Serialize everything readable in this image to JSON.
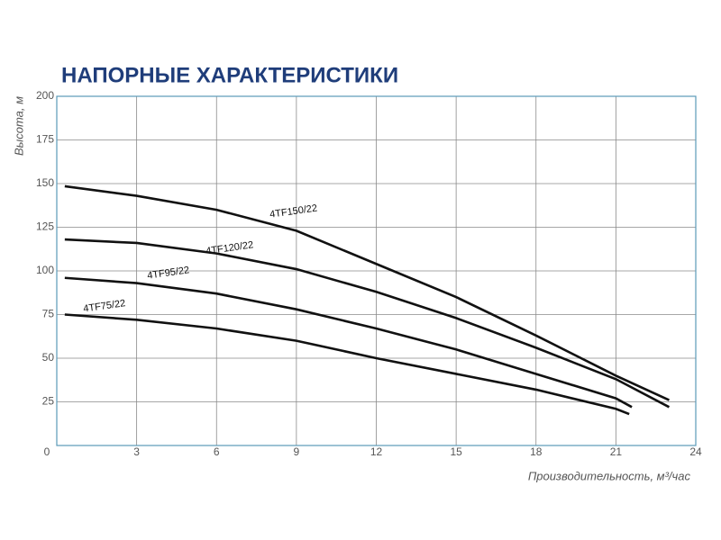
{
  "chart_data": {
    "type": "line",
    "title": "НАПОРНЫЕ ХАРАКТЕРИСТИКИ",
    "x_label": "Производительность, м³/час",
    "y_label": "Высота, м",
    "xlim": [
      0,
      24
    ],
    "xticks": [
      0,
      3,
      6,
      9,
      12,
      15,
      18,
      21,
      24
    ],
    "ylim": [
      0,
      200
    ],
    "yticks": [
      25,
      50,
      75,
      100,
      125,
      150,
      175,
      200
    ],
    "grid": true,
    "series": [
      {
        "name": "4TF150/22",
        "color": "#111111",
        "x": [
          0.3,
          3,
          6,
          9,
          12,
          15,
          18,
          21,
          23
        ],
        "values": [
          148.5,
          143,
          135,
          123,
          104,
          85,
          63,
          40,
          26
        ]
      },
      {
        "name": "4TF120/22",
        "color": "#111111",
        "x": [
          0.3,
          3,
          6,
          9,
          12,
          15,
          18,
          21,
          23
        ],
        "values": [
          118,
          116,
          110,
          101,
          88,
          73,
          56,
          38,
          22
        ]
      },
      {
        "name": "4TF95/22",
        "color": "#111111",
        "x": [
          0.3,
          3,
          6,
          9,
          12,
          15,
          18,
          21,
          21.6
        ],
        "values": [
          96,
          93,
          87,
          78,
          67,
          55,
          41,
          27,
          22
        ]
      },
      {
        "name": "4TF75/22",
        "color": "#111111",
        "x": [
          0.3,
          3,
          6,
          9,
          12,
          15,
          18,
          21,
          21.5
        ],
        "values": [
          75,
          72,
          67,
          60,
          50,
          41,
          32,
          21,
          18
        ]
      }
    ]
  }
}
